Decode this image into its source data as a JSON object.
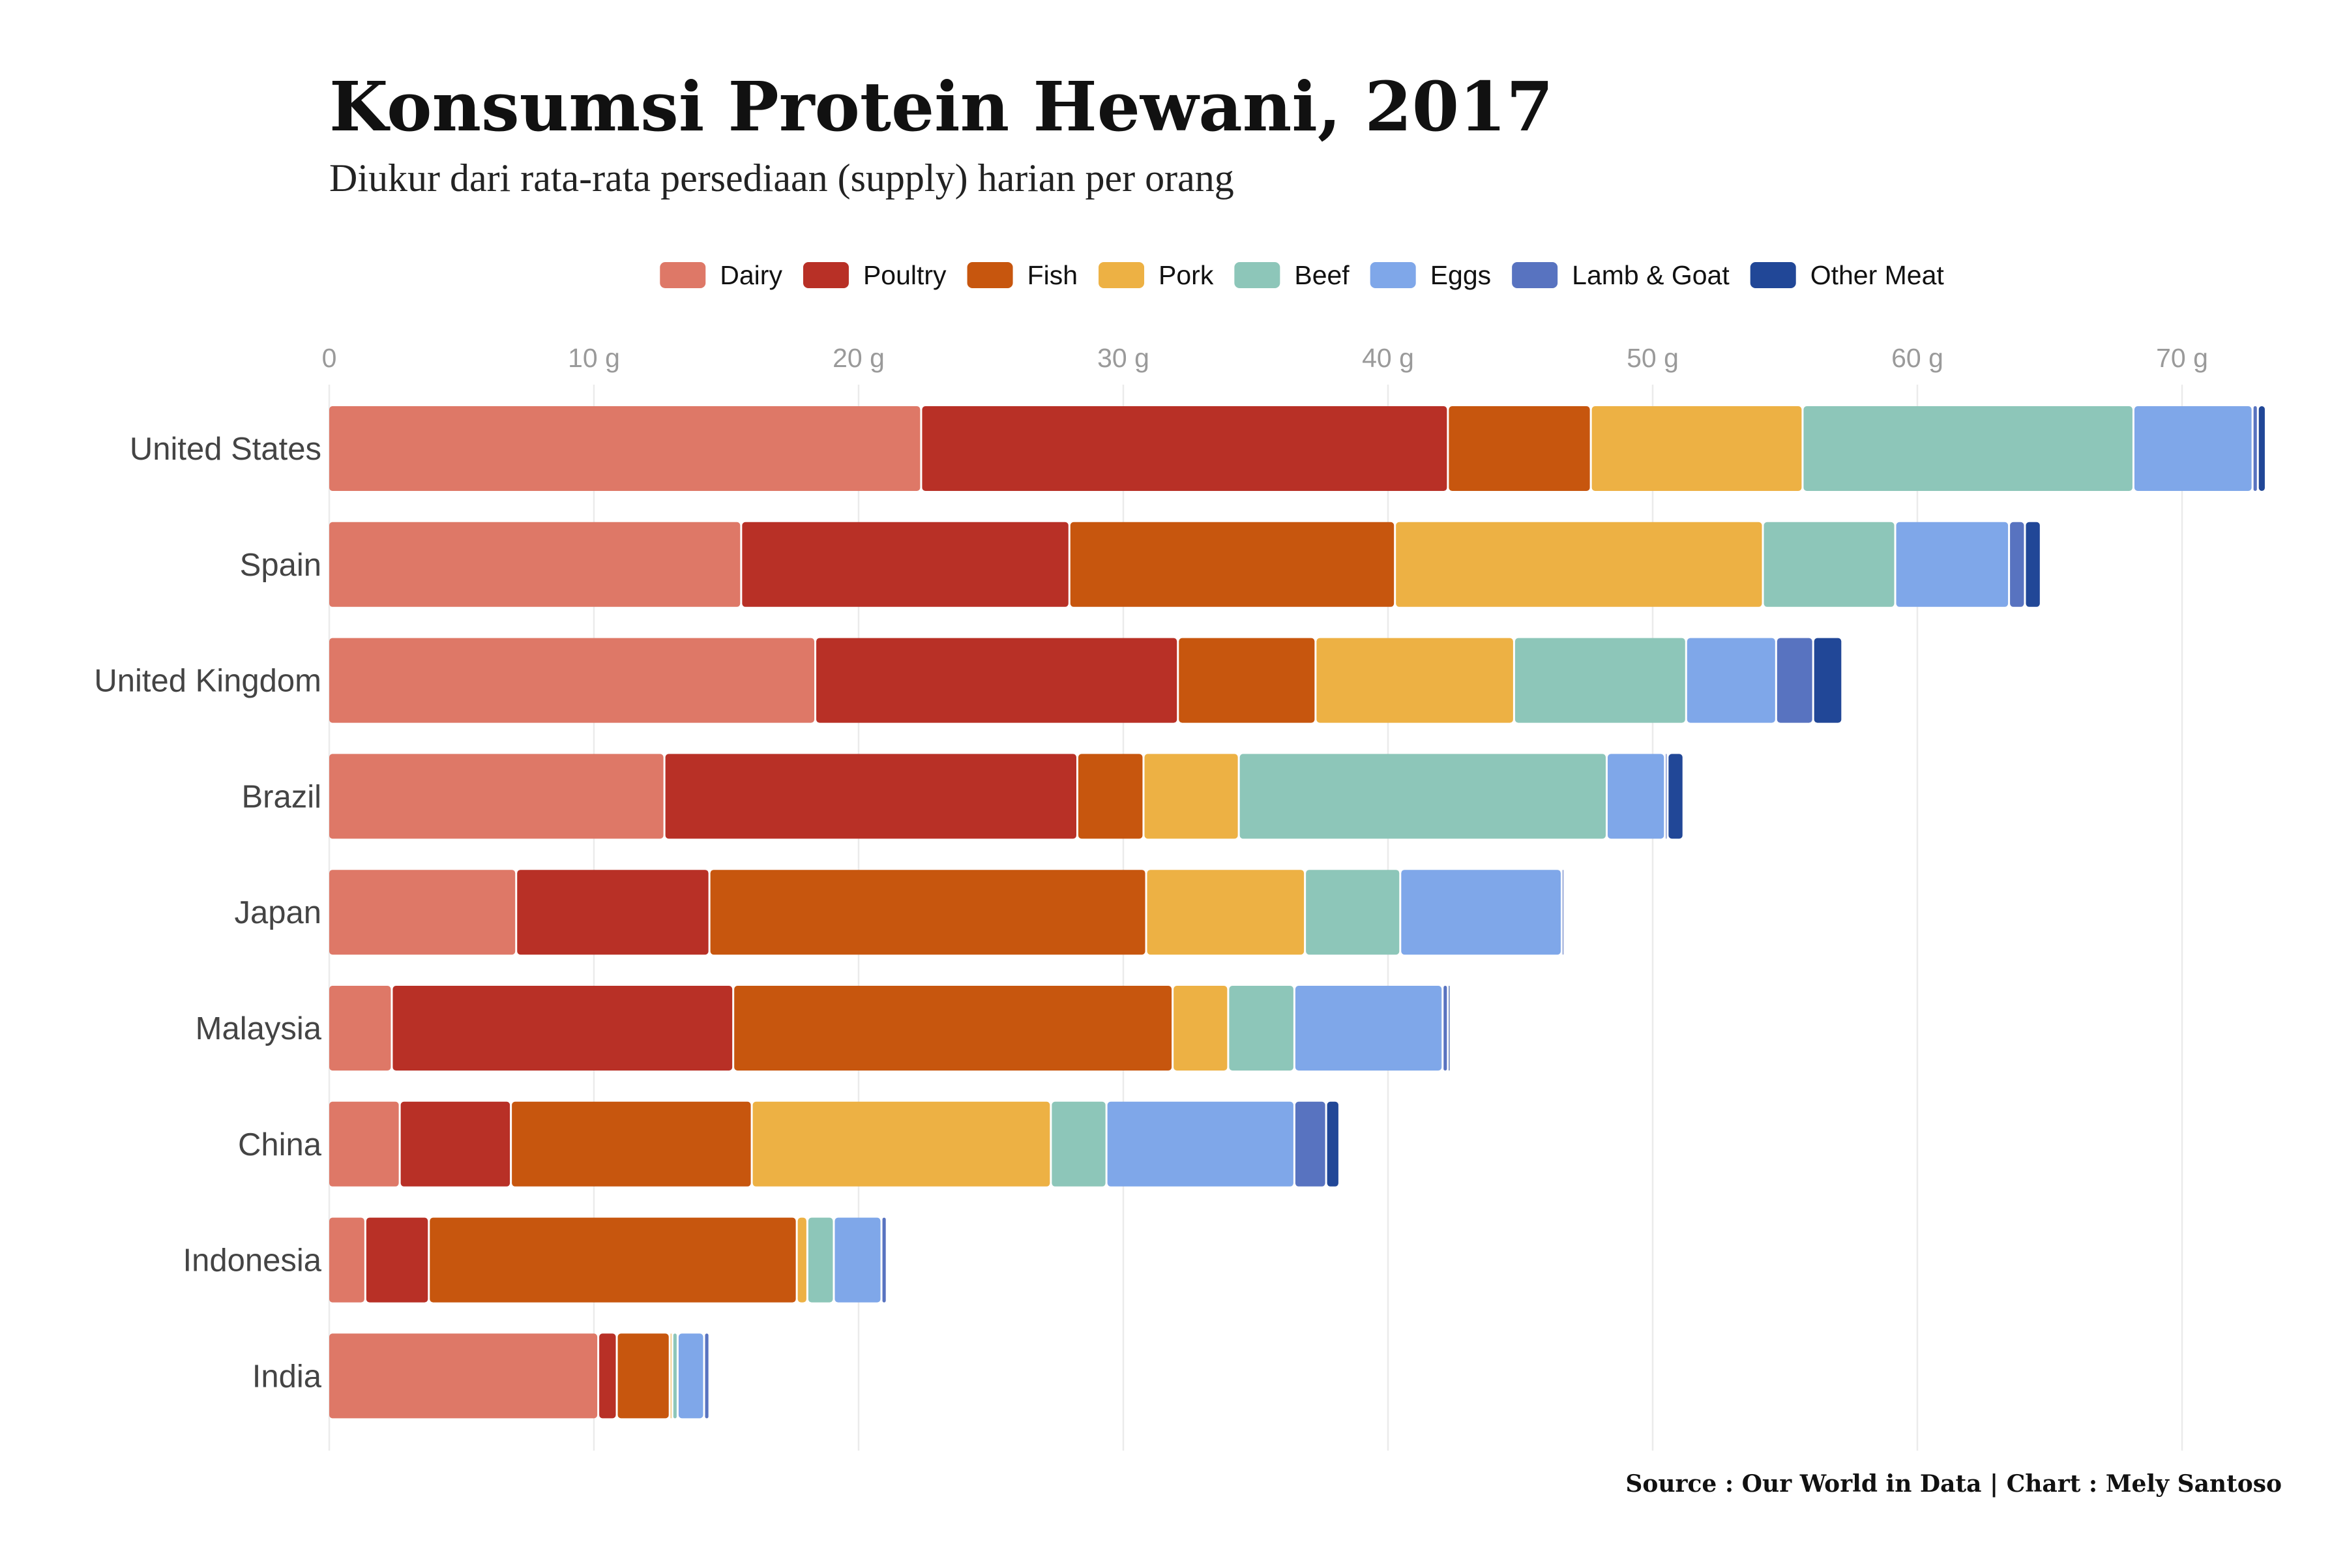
{
  "chart_data": {
    "type": "bar",
    "orientation": "horizontal",
    "stacked": true,
    "title": "Konsumsi Protein Hewani, 2017",
    "subtitle": "Diukur dari rata-rata persediaan (supply) harian per orang",
    "caption": "Source : Our World in Data | Chart : Mely Santoso",
    "legend_position": "top",
    "grid": true,
    "xlim": [
      0,
      73.5
    ],
    "x_ticks": [
      {
        "value": 0,
        "label": "0"
      },
      {
        "value": 10,
        "label": "10 g"
      },
      {
        "value": 20,
        "label": "20 g"
      },
      {
        "value": 30,
        "label": "30 g"
      },
      {
        "value": 40,
        "label": "40 g"
      },
      {
        "value": 50,
        "label": "50 g"
      },
      {
        "value": 60,
        "label": "60 g"
      },
      {
        "value": 70,
        "label": "70 g"
      }
    ],
    "categories": [
      "United States",
      "Spain",
      "United Kingdom",
      "Brazil",
      "Japan",
      "Malaysia",
      "China",
      "Indonesia",
      "India"
    ],
    "series": [
      {
        "name": "Dairy",
        "color": "#DE7867",
        "values": [
          22.4,
          15.6,
          18.4,
          12.7,
          7.1,
          2.4,
          2.7,
          1.4,
          10.2
        ]
      },
      {
        "name": "Poultry",
        "color": "#B83026",
        "values": [
          19.9,
          12.4,
          13.7,
          15.6,
          7.3,
          12.9,
          4.2,
          2.4,
          0.7
        ]
      },
      {
        "name": "Fish",
        "color": "#C7560E",
        "values": [
          5.4,
          12.3,
          5.2,
          2.5,
          16.5,
          16.6,
          9.1,
          13.9,
          2.0
        ]
      },
      {
        "name": "Pork",
        "color": "#EDB144",
        "values": [
          8.0,
          13.9,
          7.5,
          3.6,
          6.0,
          2.1,
          11.3,
          0.4,
          0.1
        ]
      },
      {
        "name": "Beef",
        "color": "#8DC6B9",
        "values": [
          12.5,
          5.0,
          6.5,
          13.9,
          3.6,
          2.5,
          2.1,
          1.0,
          0.2
        ]
      },
      {
        "name": "Eggs",
        "color": "#7FA7E9",
        "values": [
          4.5,
          4.3,
          3.4,
          2.2,
          6.1,
          5.6,
          7.1,
          1.8,
          1.0
        ]
      },
      {
        "name": "Lamb & Goat",
        "color": "#5873C0",
        "values": [
          0.2,
          0.6,
          1.4,
          0.1,
          0.1,
          0.2,
          1.2,
          0.2,
          0.2
        ]
      },
      {
        "name": "Other Meat",
        "color": "#214797",
        "values": [
          0.3,
          0.6,
          1.1,
          0.6,
          0.0,
          0.1,
          0.5,
          0.0,
          0.0
        ]
      }
    ]
  }
}
